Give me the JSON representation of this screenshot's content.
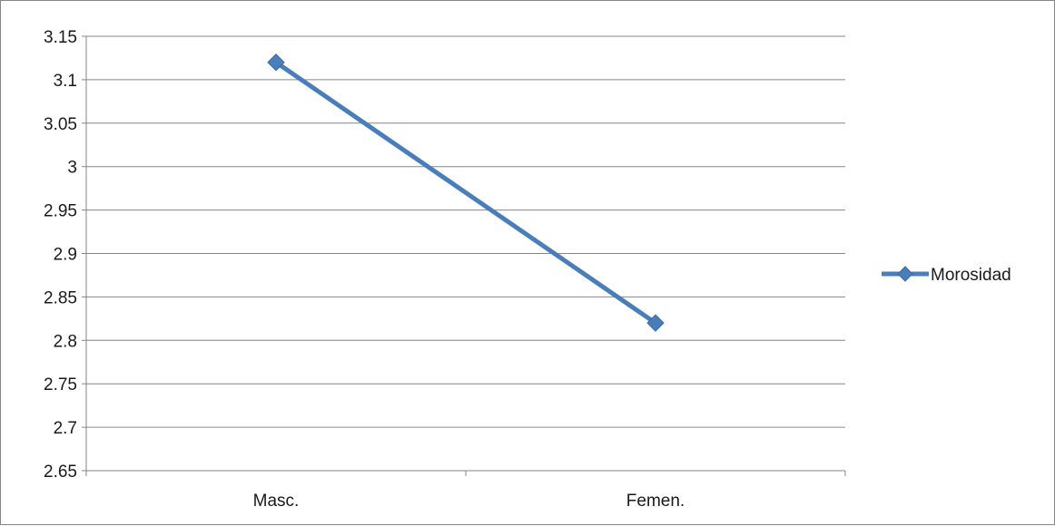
{
  "chart_data": {
    "type": "line",
    "title": "",
    "xlabel": "",
    "ylabel": "",
    "categories": [
      "Masc.",
      "Femen."
    ],
    "series": [
      {
        "name": "Morosidad",
        "values": [
          3.12,
          2.82
        ],
        "color": "#4a7ebb",
        "marker": "diamond"
      }
    ],
    "ylim": [
      2.65,
      3.15
    ],
    "y_ticks": [
      "3.15",
      "3.1",
      "3.05",
      "3",
      "2.95",
      "2.9",
      "2.85",
      "2.8",
      "2.75",
      "2.7",
      "2.65"
    ],
    "grid": true,
    "legend_position": "right",
    "colors": {
      "grid": "#868686",
      "axis": "#868686",
      "border": "#868686"
    }
  }
}
